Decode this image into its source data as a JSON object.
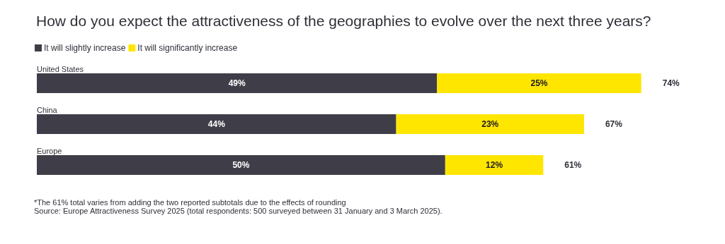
{
  "chart_data": {
    "type": "bar",
    "orientation": "horizontal",
    "stacked": true,
    "title": "How do you expect the attractiveness of the geographies to evolve over the next three years?",
    "categories": [
      "United States",
      "China",
      "Europe"
    ],
    "series": [
      {
        "name": "It will slightly increase",
        "color": "#3f3e48",
        "values": [
          49,
          44,
          50
        ],
        "value_labels": [
          "49%",
          "44%",
          "50%"
        ]
      },
      {
        "name": "It will significantly increase",
        "color": "#ffe600",
        "values": [
          25,
          23,
          12
        ],
        "value_labels": [
          "25%",
          "23%",
          "12%"
        ]
      }
    ],
    "totals": [
      "74%",
      "67%",
      "61%"
    ],
    "legend": "top left",
    "annotations": [
      "*The 61% total varies from adding the two reported subtotals due to the effects of rounding",
      "Source: Europe Attractiveness Survey 2025 (total respondents: 500 surveyed between 31 January and 3 March 2025)."
    ]
  }
}
